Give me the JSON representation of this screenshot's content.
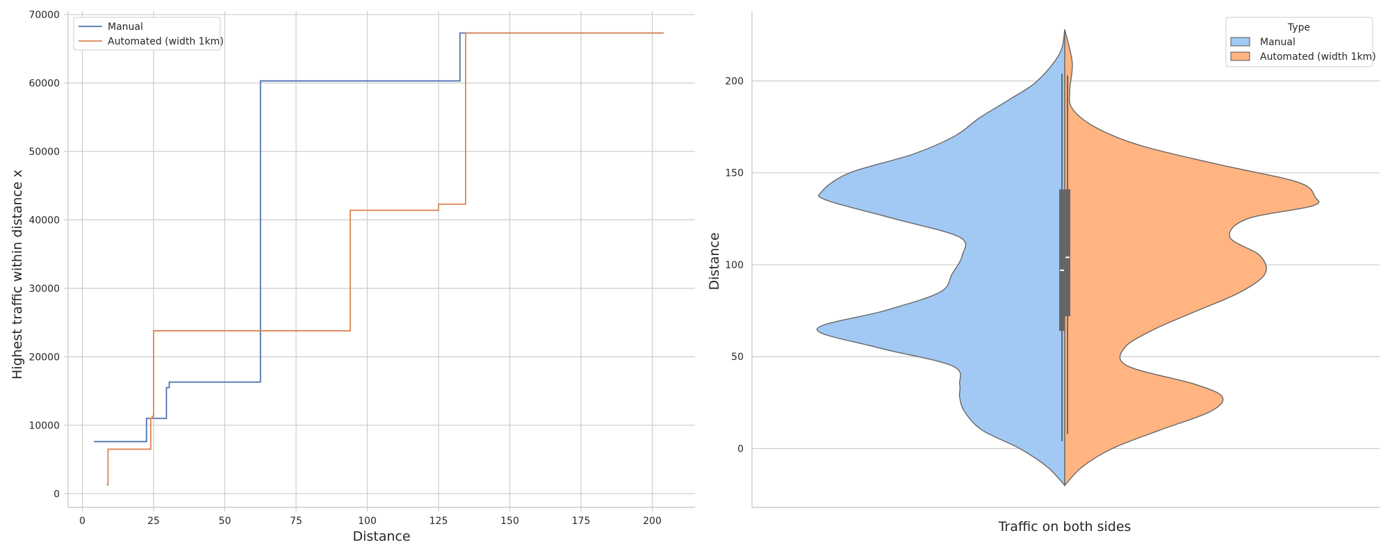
{
  "chart_data": [
    {
      "type": "line",
      "drawstyle": "steps-post",
      "xlabel": "Distance",
      "ylabel": "Highest traffic within distance x",
      "xlim": [
        -5,
        215
      ],
      "ylim": [
        -2000,
        70500
      ],
      "xticks": [
        0,
        25,
        50,
        75,
        100,
        125,
        150,
        175,
        200
      ],
      "yticks": [
        0,
        10000,
        20000,
        30000,
        40000,
        50000,
        60000,
        70000
      ],
      "grid": true,
      "legend": "top-left",
      "series": [
        {
          "name": "Manual",
          "color": "#4c72b0",
          "x": [
            4,
            22.5,
            29.5,
            30.5,
            62.5,
            132.5,
            204
          ],
          "y": [
            7600,
            11000,
            15500,
            16300,
            60300,
            67300,
            67300
          ]
        },
        {
          "name": "Automated (width 1km)",
          "color": "#dd8452",
          "x": [
            8.5,
            9,
            24,
            24.5,
            25,
            94,
            125,
            134.5,
            204
          ],
          "y": [
            1300,
            6500,
            11000,
            11300,
            23800,
            41400,
            42300,
            67300,
            67300
          ]
        }
      ]
    },
    {
      "type": "violin",
      "split": true,
      "xlabel": "Traffic on both sides",
      "ylabel": "Distance",
      "ylim": [
        -32,
        238
      ],
      "yticks": [
        0,
        50,
        100,
        150,
        200
      ],
      "grid": true,
      "legend": "top-right",
      "legend_title": "Type",
      "series": [
        {
          "name": "Manual",
          "color": "#a1c9f4",
          "density_y": [
            -20,
            -10,
            0,
            10,
            20,
            28,
            35,
            45,
            55,
            65,
            75,
            85,
            95,
            105,
            115,
            125,
            135,
            140,
            150,
            160,
            170,
            180,
            190,
            200,
            215,
            228
          ],
          "density_width": [
            0,
            0.07,
            0.18,
            0.33,
            0.4,
            0.42,
            0.42,
            0.45,
            0.75,
            0.99,
            0.72,
            0.5,
            0.45,
            0.41,
            0.42,
            0.68,
            0.95,
            0.97,
            0.86,
            0.61,
            0.44,
            0.34,
            0.22,
            0.11,
            0.02,
            0
          ],
          "quartiles": [
            64,
            97,
            141
          ],
          "whiskers": [
            4,
            204
          ]
        },
        {
          "name": "Automated (width 1km)",
          "color": "#ffb482",
          "density_y": [
            -20,
            -10,
            0,
            10,
            20,
            28,
            35,
            45,
            55,
            65,
            75,
            85,
            95,
            105,
            115,
            125,
            132,
            137,
            145,
            155,
            165,
            175,
            185,
            195,
            210,
            228
          ],
          "density_width": [
            0,
            0.07,
            0.19,
            0.38,
            0.58,
            0.63,
            0.52,
            0.25,
            0.24,
            0.36,
            0.53,
            0.7,
            0.8,
            0.78,
            0.66,
            0.73,
            0.99,
            1.0,
            0.93,
            0.6,
            0.3,
            0.12,
            0.03,
            0.02,
            0.03,
            0
          ],
          "quartiles": [
            72,
            104,
            141
          ],
          "whiskers": [
            8,
            203
          ]
        }
      ]
    }
  ]
}
